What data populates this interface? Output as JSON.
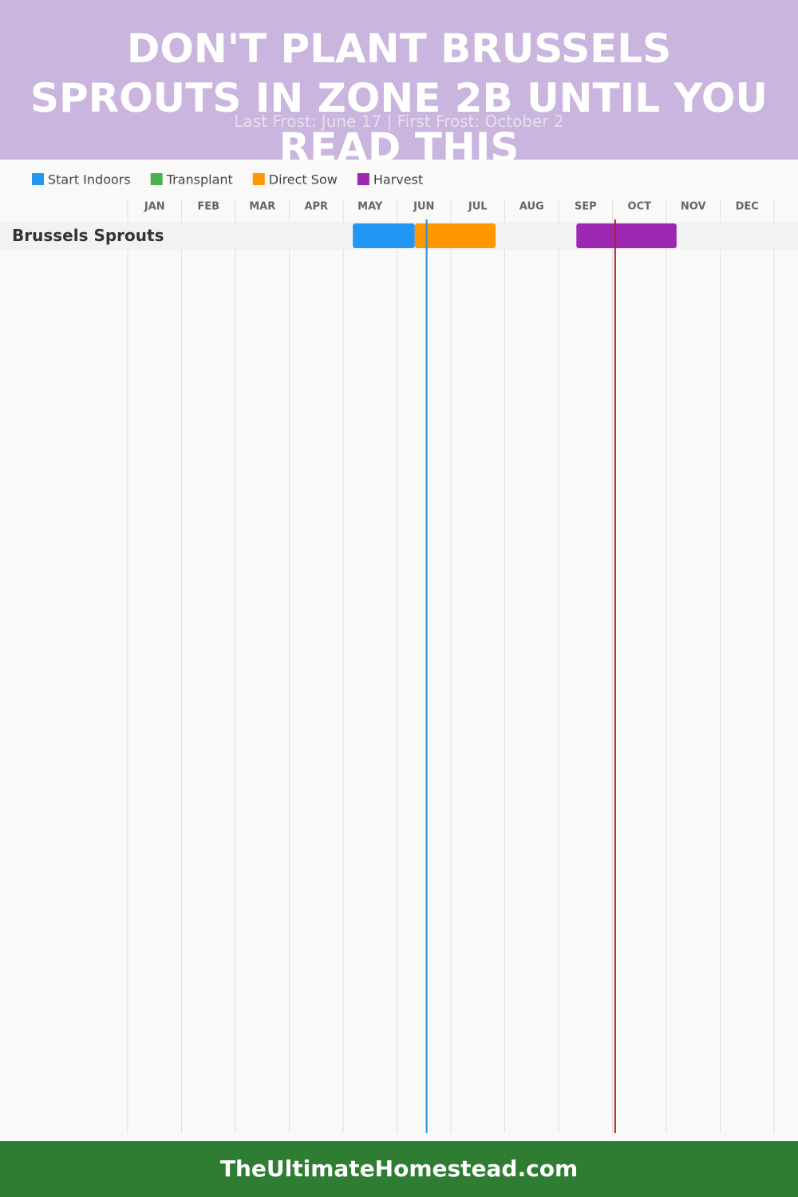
{
  "chart_data": {
    "type": "gantt",
    "title": "Don't Plant Brussels Sprouts in Zone 2b Until You Read This",
    "subtitle": "Last Frost: June 17 | First Frost: October 2",
    "categories": [
      "Brussels Sprouts"
    ],
    "xlim": [
      0,
      12
    ],
    "xticks": [
      {
        "value": 0,
        "label": "JAN"
      },
      {
        "value": 1,
        "label": "FEB"
      },
      {
        "value": 2,
        "label": "MAR"
      },
      {
        "value": 3,
        "label": "APR"
      },
      {
        "value": 4,
        "label": "MAY"
      },
      {
        "value": 5,
        "label": "JUN"
      },
      {
        "value": 6,
        "label": "JUL"
      },
      {
        "value": 7,
        "label": "AUG"
      },
      {
        "value": 8,
        "label": "SEP"
      },
      {
        "value": 9,
        "label": "OCT"
      },
      {
        "value": 10,
        "label": "NOV"
      },
      {
        "value": 11,
        "label": "DEC"
      }
    ],
    "grid": true,
    "series": [
      {
        "name": "Start Indoors",
        "color": "#2196f3",
        "values": [
          [
            4.18,
            5.33
          ]
        ]
      },
      {
        "name": "Transplant",
        "color": "#4caf50",
        "values": [
          null
        ]
      },
      {
        "name": "Direct Sow",
        "color": "#ff9800",
        "values": [
          [
            5.33,
            6.83
          ]
        ]
      },
      {
        "name": "Harvest",
        "color": "#9c27b0",
        "values": [
          [
            8.33,
            10.19
          ]
        ]
      }
    ],
    "markers": [
      {
        "value": 5.55,
        "color": "#2a8fd6"
      },
      {
        "value": 9.05,
        "color": "#b22222"
      }
    ]
  },
  "footer": "TheUltimateHomestead.com"
}
